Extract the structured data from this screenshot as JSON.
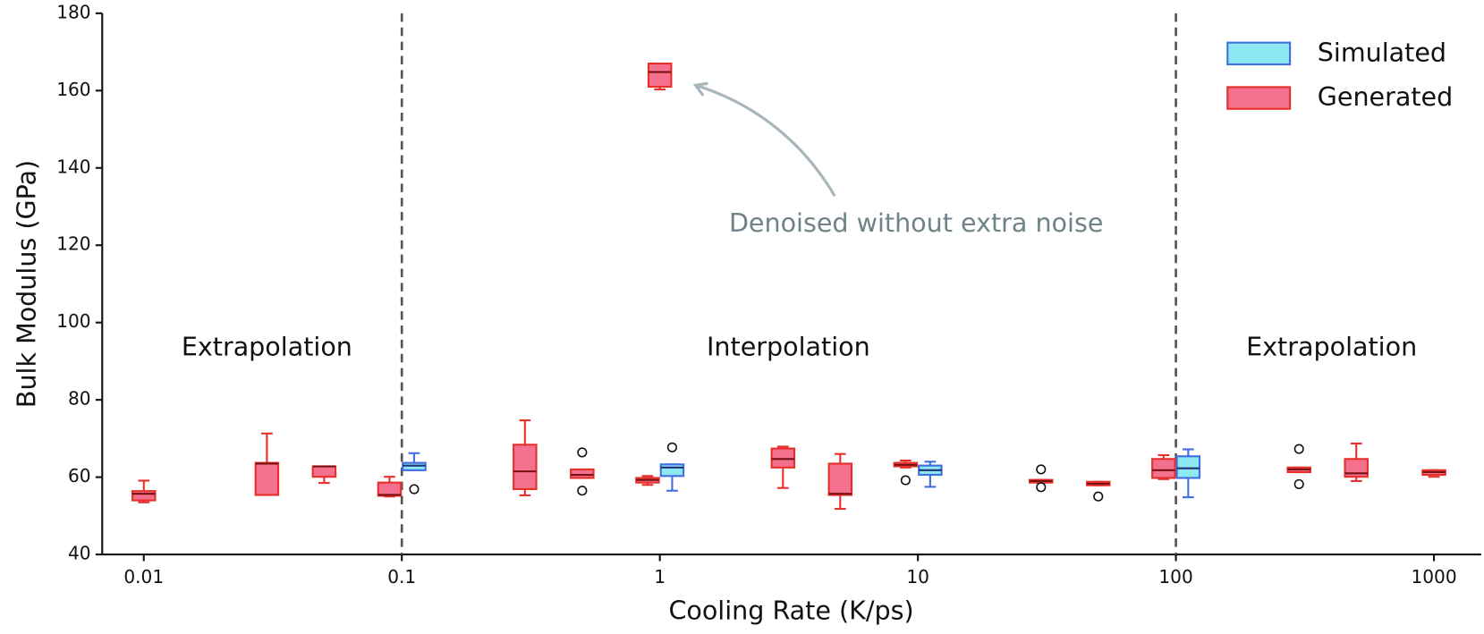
{
  "chart_data": {
    "type": "box",
    "xlabel": "Cooling Rate (K/ps)",
    "ylabel": "Bulk Modulus (GPa)",
    "xscale": "log",
    "xlim": [
      0.0069,
      1524
    ],
    "xticks": [
      0.01,
      0.1,
      1,
      10,
      100,
      1000
    ],
    "ylim": [
      40,
      180
    ],
    "yticks": [
      40,
      60,
      80,
      100,
      120,
      140,
      160,
      180
    ],
    "legend": "upper right",
    "boundaries": [
      0.1,
      100
    ],
    "regions": [
      "Extrapolation",
      "Interpolation",
      "Extrapolation"
    ],
    "series": [
      {
        "name": "Simulated",
        "color": "#8ee8f2",
        "edgecolor": "#3f6fe0",
        "mediancolor": "#1f2f7a",
        "boxes": [
          {
            "x": 0.1,
            "whislo": 61.8,
            "q1": 61.8,
            "med": 63.0,
            "q3": 63.7,
            "whishi": 66.2,
            "fliers": [
              56.9
            ]
          },
          {
            "x": 1,
            "whislo": 56.5,
            "q1": 60.3,
            "med": 62.5,
            "q3": 63.3,
            "whishi": 63.3,
            "fliers": [
              67.7
            ]
          },
          {
            "x": 10,
            "whislo": 57.5,
            "q1": 60.6,
            "med": 61.8,
            "q3": 63.0,
            "whishi": 64.0,
            "fliers": []
          },
          {
            "x": 100,
            "whislo": 54.8,
            "q1": 59.8,
            "med": 62.3,
            "q3": 65.4,
            "whishi": 67.2,
            "fliers": []
          }
        ]
      },
      {
        "name": "Generated",
        "color": "#f3718f",
        "edgecolor": "#e8302b",
        "mediancolor": "#7a1010",
        "boxes": [
          {
            "x": 0.01,
            "whislo": 53.5,
            "q1": 54.0,
            "med": 55.7,
            "q3": 56.4,
            "whishi": 59.1,
            "fliers": []
          },
          {
            "x": 0.03,
            "whislo": 55.4,
            "q1": 55.4,
            "med": 63.5,
            "q3": 63.7,
            "whishi": 71.3,
            "fliers": []
          },
          {
            "x": 0.05,
            "whislo": 58.5,
            "q1": 60.1,
            "med": 62.8,
            "q3": 62.8,
            "whishi": 62.8,
            "fliers": []
          },
          {
            "x": 0.1,
            "whislo": 55.0,
            "q1": 55.2,
            "med": 55.4,
            "q3": 58.6,
            "whishi": 60.1,
            "fliers": []
          },
          {
            "x": 0.3,
            "whislo": 55.3,
            "q1": 56.9,
            "med": 61.5,
            "q3": 68.4,
            "whishi": 74.7,
            "fliers": []
          },
          {
            "x": 0.5,
            "whislo": 59.8,
            "q1": 59.8,
            "med": 60.6,
            "q3": 62.0,
            "whishi": 62.0,
            "fliers": [
              66.4,
              56.5
            ]
          },
          {
            "x": 1,
            "whislo": 58.0,
            "q1": 58.6,
            "med": 59.3,
            "q3": 59.8,
            "whishi": 60.3,
            "fliers": []
          },
          {
            "x": 3,
            "whislo": 57.2,
            "q1": 62.5,
            "med": 64.7,
            "q3": 67.4,
            "whishi": 67.9,
            "fliers": []
          },
          {
            "x": 5,
            "whislo": 51.8,
            "q1": 55.4,
            "med": 55.7,
            "q3": 63.5,
            "whishi": 66.0,
            "fliers": []
          },
          {
            "x": 10,
            "whislo": 62.5,
            "q1": 62.8,
            "med": 63.2,
            "q3": 63.7,
            "whishi": 64.3,
            "fliers": [
              59.2
            ]
          },
          {
            "x": 30,
            "whislo": 58.6,
            "q1": 58.6,
            "med": 59.0,
            "q3": 59.3,
            "whishi": 59.3,
            "fliers": [
              62.0,
              57.4
            ]
          },
          {
            "x": 50,
            "whislo": 57.9,
            "q1": 57.9,
            "med": 58.3,
            "q3": 58.8,
            "whishi": 58.8,
            "fliers": [
              55.0
            ]
          },
          {
            "x": 100,
            "whislo": 59.5,
            "q1": 59.8,
            "med": 61.8,
            "q3": 64.7,
            "whishi": 65.7,
            "fliers": []
          },
          {
            "x": 300,
            "whislo": 61.3,
            "q1": 61.3,
            "med": 62.0,
            "q3": 62.5,
            "whishi": 62.5,
            "fliers": [
              67.3,
              58.2
            ]
          },
          {
            "x": 500,
            "whislo": 59.0,
            "q1": 60.1,
            "med": 61.0,
            "q3": 64.7,
            "whishi": 68.7,
            "fliers": []
          },
          {
            "x": 1000,
            "whislo": 60.1,
            "q1": 60.6,
            "med": 61.3,
            "q3": 61.8,
            "whishi": 61.8,
            "fliers": []
          }
        ]
      }
    ],
    "highlight": {
      "text": "Denoised without extra noise",
      "box": {
        "x": 1,
        "whislo": 160.3,
        "q1": 161.0,
        "med": 164.8,
        "q3": 167.0,
        "whishi": 167.0,
        "fliers": []
      }
    }
  }
}
